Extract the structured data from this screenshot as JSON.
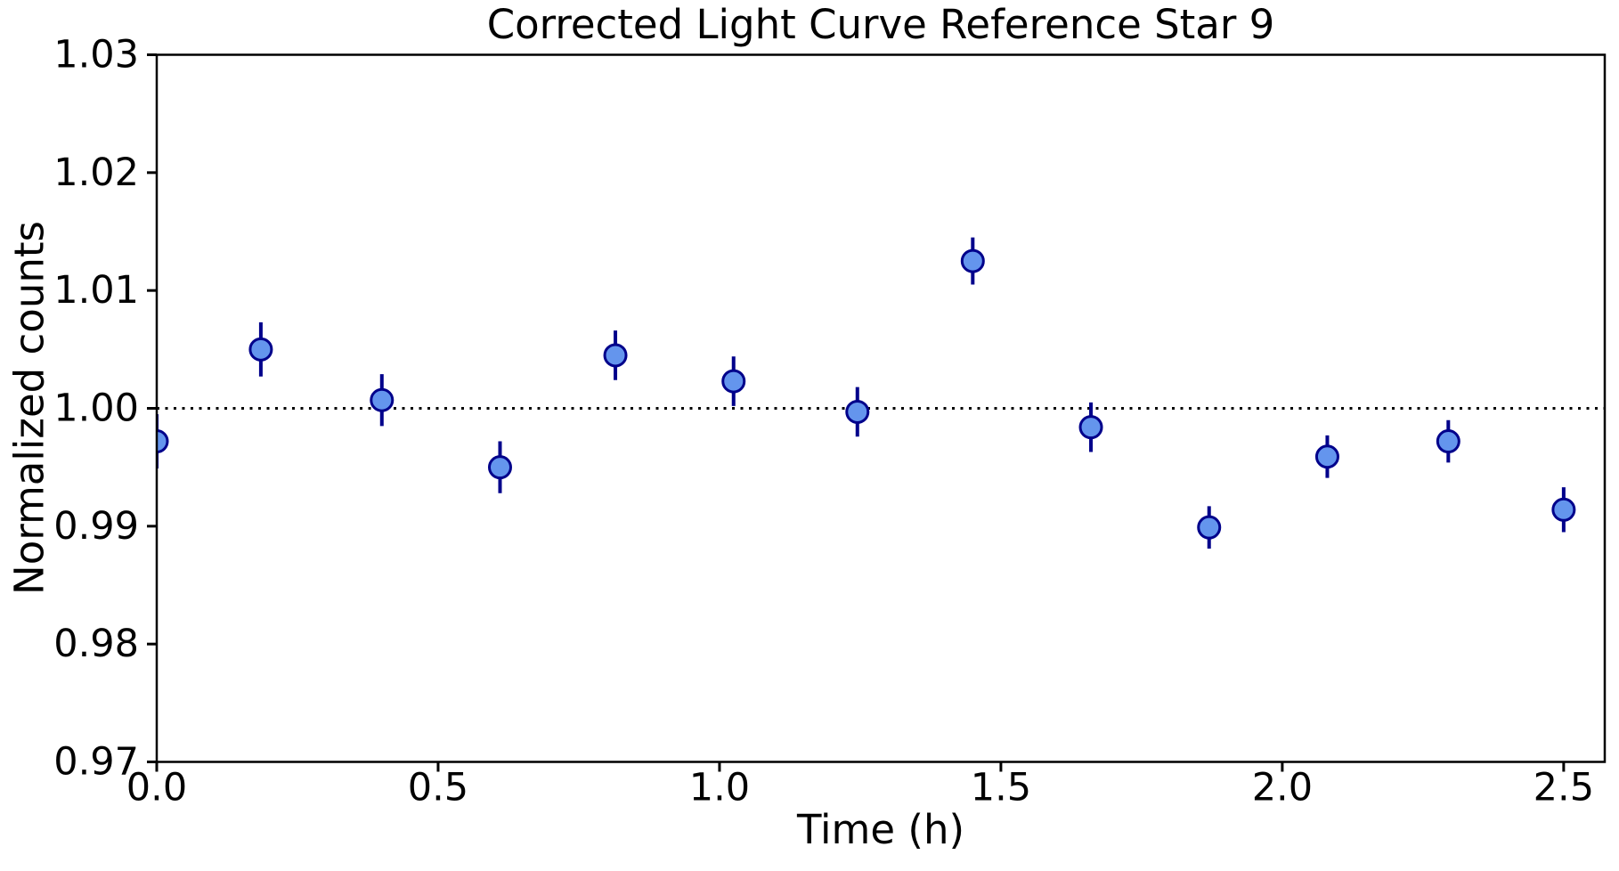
{
  "figure": {
    "title": "Corrected Light Curve Reference Star 9",
    "xlabel": "Time (h)",
    "ylabel": "Normalized counts"
  },
  "chart_data": {
    "type": "scatter",
    "title": "Corrected Light Curve Reference Star 9",
    "xlabel": "Time (h)",
    "ylabel": "Normalized counts",
    "xlim": [
      0.0,
      2.573
    ],
    "ylim": [
      0.97,
      1.03
    ],
    "x_ticks": [
      0.0,
      0.5,
      1.0,
      1.5,
      2.0,
      2.5
    ],
    "x_tick_labels": [
      "0.0",
      "0.5",
      "1.0",
      "1.5",
      "2.0",
      "2.5"
    ],
    "y_ticks": [
      0.97,
      0.98,
      0.99,
      1.0,
      1.01,
      1.02,
      1.03
    ],
    "y_tick_labels": [
      "0.97",
      "0.98",
      "0.99",
      "1.00",
      "1.01",
      "1.02",
      "1.03"
    ],
    "grid": false,
    "legend": null,
    "reference_line": {
      "y": 1.0,
      "style": "dotted",
      "color": "#000000"
    },
    "series": [
      {
        "name": "normalized-counts",
        "marker": "circle",
        "marker_color": "#6495ED",
        "edge_color": "#00008B",
        "errorbar_color": "#00008B",
        "points": [
          {
            "x": 0.0,
            "y": 0.9972,
            "yerr": 0.0023
          },
          {
            "x": 0.185,
            "y": 1.005,
            "yerr": 0.0023
          },
          {
            "x": 0.4,
            "y": 1.0007,
            "yerr": 0.0022
          },
          {
            "x": 0.61,
            "y": 0.995,
            "yerr": 0.0022
          },
          {
            "x": 0.815,
            "y": 1.0045,
            "yerr": 0.0021
          },
          {
            "x": 1.025,
            "y": 1.0023,
            "yerr": 0.0021
          },
          {
            "x": 1.245,
            "y": 0.9997,
            "yerr": 0.0021
          },
          {
            "x": 1.45,
            "y": 1.0125,
            "yerr": 0.002
          },
          {
            "x": 1.66,
            "y": 0.9984,
            "yerr": 0.0021
          },
          {
            "x": 1.87,
            "y": 0.9899,
            "yerr": 0.0018
          },
          {
            "x": 2.08,
            "y": 0.9959,
            "yerr": 0.0018
          },
          {
            "x": 2.295,
            "y": 0.9972,
            "yerr": 0.0018
          },
          {
            "x": 2.5,
            "y": 0.9914,
            "yerr": 0.0019
          }
        ]
      }
    ]
  }
}
